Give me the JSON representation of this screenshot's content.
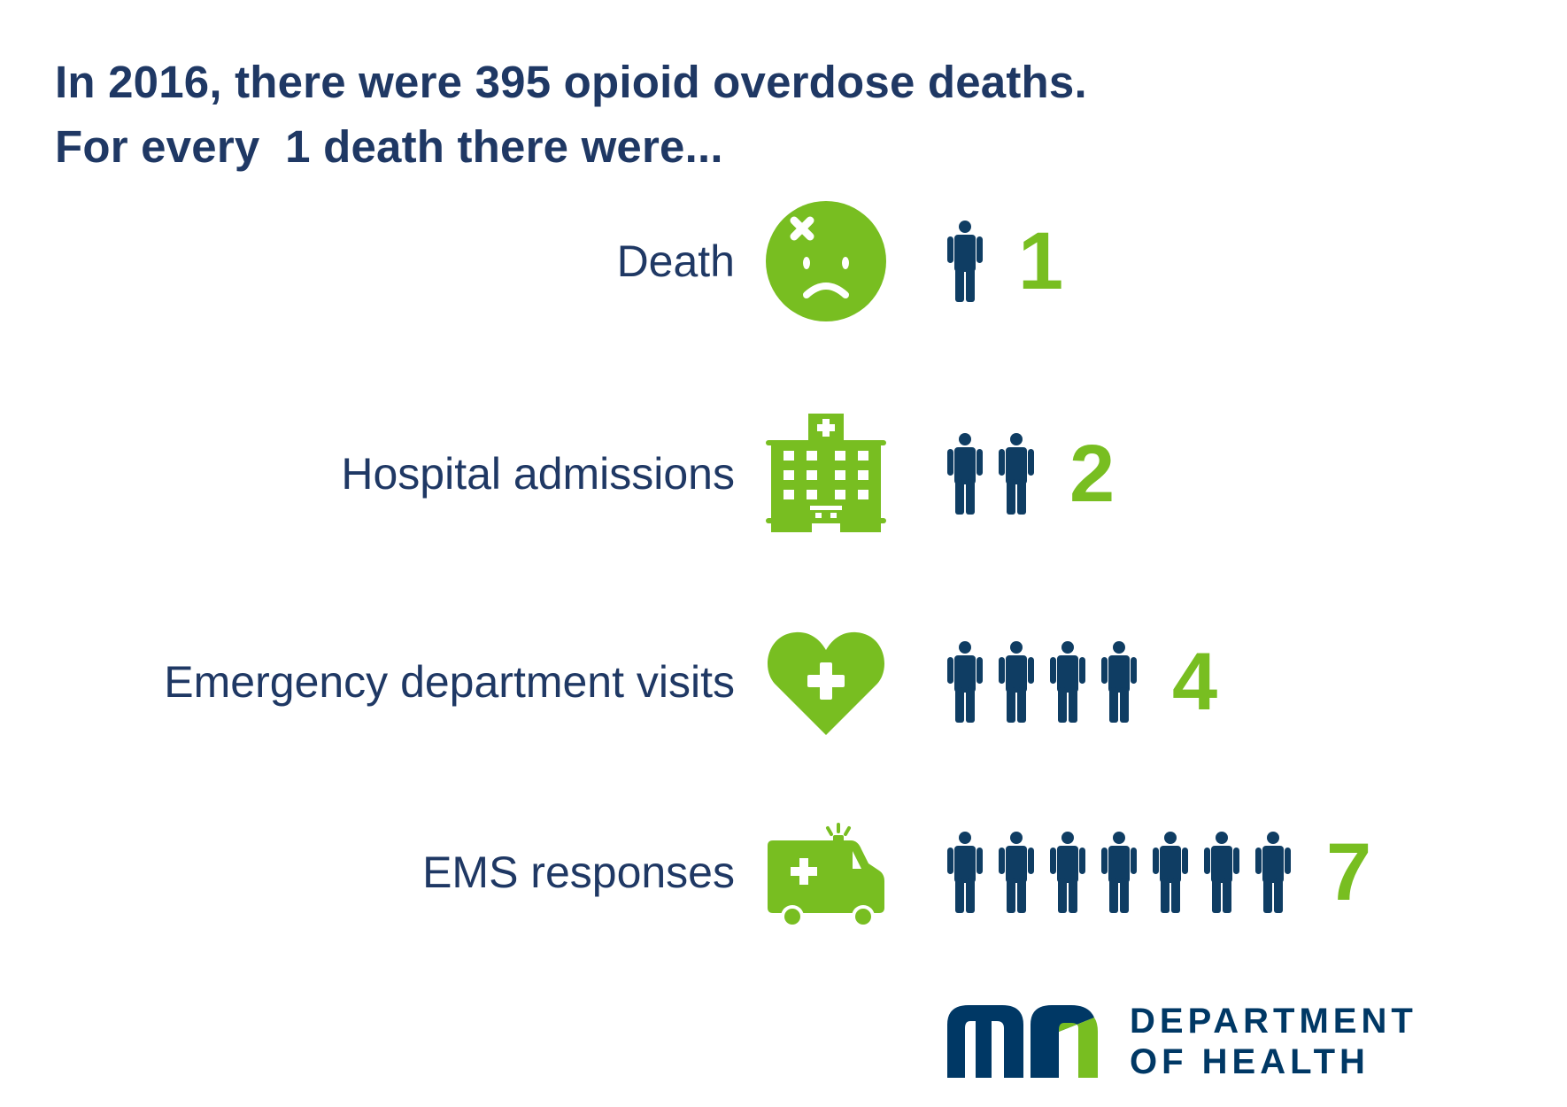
{
  "title": {
    "line1": "In 2016, there were 395 opioid overdose deaths.",
    "line2": "For every  1 death there were..."
  },
  "colors": {
    "title": "#1f3864",
    "accent_green": "#78be21",
    "person_navy": "#0f3d63",
    "logo_navy": "#003865"
  },
  "chart_data": {
    "type": "pictograph",
    "title": "In 2016, there were 395 opioid overdose deaths. For every  1 death there were...",
    "categories": [
      "Death",
      "Hospital admissions",
      "Emergency department visits",
      "EMS responses"
    ],
    "values": [
      1,
      2,
      4,
      7
    ],
    "icons": [
      "sad-face-icon",
      "hospital-icon",
      "heart-plus-icon",
      "ambulance-icon"
    ]
  },
  "rows": [
    {
      "label": "Death",
      "count": "1",
      "icon": "sad-face-icon"
    },
    {
      "label": "Hospital admissions",
      "count": "2",
      "icon": "hospital-icon"
    },
    {
      "label": "Emergency department visits",
      "count": "4",
      "icon": "heart-plus-icon"
    },
    {
      "label": "EMS responses",
      "count": "7",
      "icon": "ambulance-icon"
    }
  ],
  "logo": {
    "line1": "DEPARTMENT",
    "line2": "OF HEALTH",
    "mark_text": "mn"
  }
}
